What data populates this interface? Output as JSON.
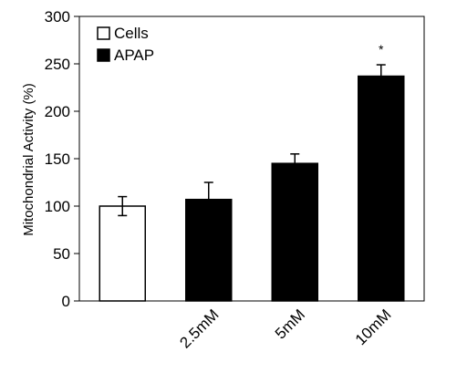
{
  "chart_data": {
    "type": "bar",
    "title": "",
    "xlabel": "",
    "ylabel": "Mitochondrial Activity (%)",
    "ylim": [
      0,
      300
    ],
    "yticks": [
      0,
      50,
      100,
      150,
      200,
      250,
      300
    ],
    "grid": false,
    "legend_position": "top-left",
    "categories": [
      "",
      "2.5mM",
      "5mM",
      "10mM"
    ],
    "bars": [
      {
        "category": "",
        "series": "Cells",
        "value": 100,
        "error": 10
      },
      {
        "category": "2.5mM",
        "series": "APAP",
        "value": 107,
        "error": 18
      },
      {
        "category": "5mM",
        "series": "APAP",
        "value": 145,
        "error": 10
      },
      {
        "category": "10mM",
        "series": "APAP",
        "value": 237,
        "error": 12
      }
    ],
    "series": [
      {
        "name": "Cells",
        "fill": "#ffffff",
        "stroke": "#000000"
      },
      {
        "name": "APAP",
        "fill": "#000000",
        "stroke": "#000000"
      }
    ],
    "annotations": [
      {
        "text": "*",
        "category": "10mM"
      }
    ]
  }
}
